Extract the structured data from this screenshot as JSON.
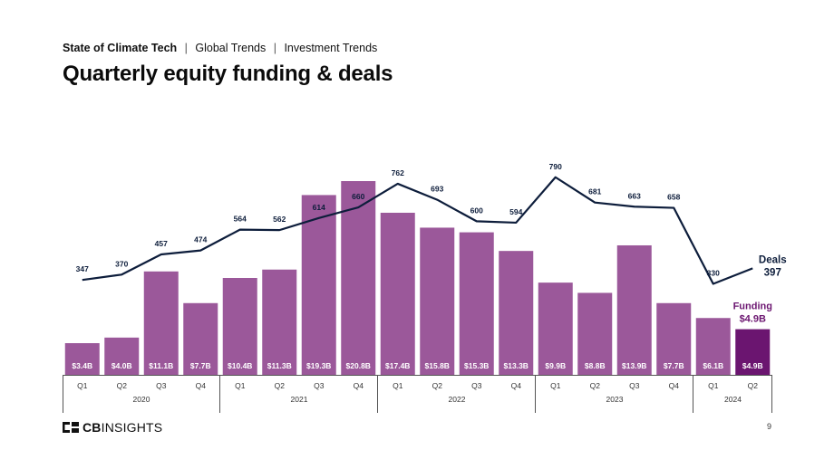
{
  "header": {
    "breadcrumb": {
      "main": "State of Climate Tech",
      "separator": "|",
      "items": [
        "Global Trends",
        "Investment Trends"
      ]
    },
    "title": "Quarterly equity funding & deals"
  },
  "footer": {
    "logo_bold": "CB",
    "logo_light": "INSIGHTS",
    "page_number": "9"
  },
  "colors": {
    "bar": "#9b589a",
    "bar_highlight": "#6b1570",
    "line": "#0d1d3b",
    "bar_label": "#ffffff",
    "axis": "#555555"
  },
  "chart_data": {
    "type": "bar",
    "combo": "bar-and-line",
    "categories": [
      "Q1",
      "Q2",
      "Q3",
      "Q4",
      "Q1",
      "Q2",
      "Q3",
      "Q4",
      "Q1",
      "Q2",
      "Q3",
      "Q4",
      "Q1",
      "Q2",
      "Q3",
      "Q4",
      "Q1",
      "Q2"
    ],
    "years": [
      {
        "label": "2020",
        "count": 4
      },
      {
        "label": "2021",
        "count": 4
      },
      {
        "label": "2022",
        "count": 4
      },
      {
        "label": "2023",
        "count": 4
      },
      {
        "label": "2024",
        "count": 2
      }
    ],
    "series": [
      {
        "name": "Funding",
        "type": "bar",
        "unit": "$B",
        "values": [
          3.4,
          4.0,
          11.1,
          7.7,
          10.4,
          11.3,
          19.3,
          20.8,
          17.4,
          15.8,
          15.3,
          13.3,
          9.9,
          8.8,
          13.9,
          7.7,
          6.1,
          4.9
        ],
        "labels": [
          "$3.4B",
          "$4.0B",
          "$11.1B",
          "$7.7B",
          "$10.4B",
          "$11.3B",
          "$19.3B",
          "$20.8B",
          "$17.4B",
          "$15.8B",
          "$15.3B",
          "$13.3B",
          "$9.9B",
          "$8.8B",
          "$13.9B",
          "$7.7B",
          "$6.1B",
          "$4.9B"
        ],
        "highlight_index": 17,
        "callout": {
          "name": "Funding",
          "value": "$4.9B"
        }
      },
      {
        "name": "Deals",
        "type": "line",
        "values": [
          347,
          370,
          457,
          474,
          564,
          562,
          614,
          660,
          762,
          693,
          600,
          594,
          790,
          681,
          663,
          658,
          330,
          397
        ],
        "callout": {
          "name": "Deals",
          "value": "397"
        }
      }
    ],
    "ylim_bars": [
      0,
      22
    ],
    "ylim_deals": [
      0,
      800
    ],
    "grid": false
  }
}
